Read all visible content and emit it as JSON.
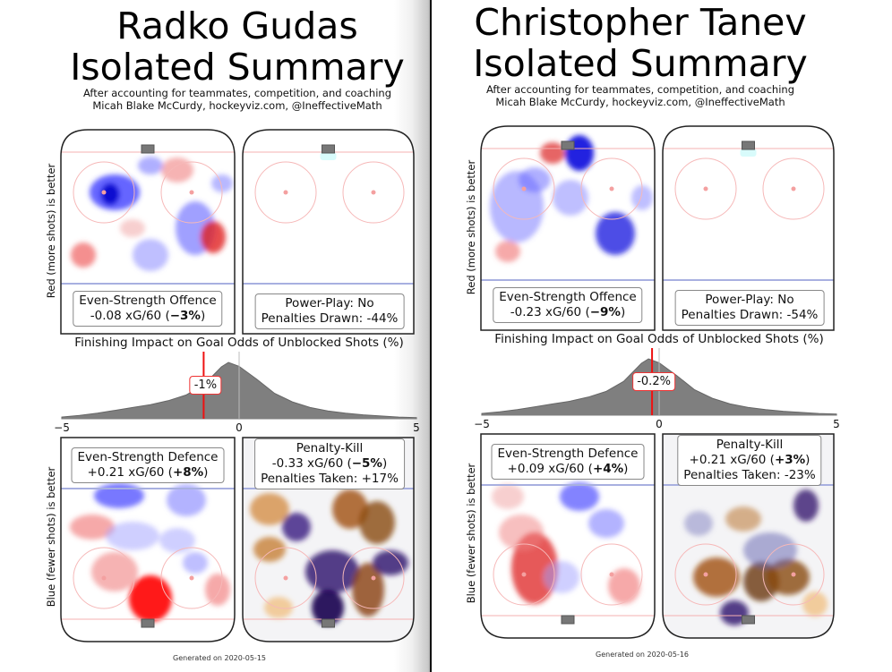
{
  "shared": {
    "subtitle_1": "After accounting for teammates, competition, and coaching",
    "subtitle_2": "Micah Blake McCurdy, hockeyviz.com, @IneffectiveMath",
    "ylabel_top": "Red (more shots) is better",
    "ylabel_bottom": "Blue (fewer shots) is better",
    "colors": {
      "offence_good": "#ff0000",
      "offence_bad": "#3030ff",
      "pk_good": "#7a3a00",
      "pk_bad": "#2a0a5a",
      "marker": "#ee1111"
    }
  },
  "players": [
    {
      "name": "Radko Gudas",
      "title_2": "Isolated Summary",
      "es_offence": {
        "label": "Even-Strength Offence",
        "value": "-0.08 xG/60 (",
        "pct": "−3%",
        "close": ")"
      },
      "power_play": {
        "label": "Power-Play: No",
        "penalties": "Penalties Drawn: -44%"
      },
      "es_defence": {
        "label": "Even-Strength Defence",
        "value": "+0.21 xG/60 (",
        "pct": "+8%",
        "close": ")"
      },
      "penalty_kill": {
        "label": "Penalty-Kill",
        "value": "-0.33 xG/60 (",
        "pct": "−5%",
        "close": ")",
        "penalties": "Penalties Taken: +17%"
      },
      "finishing": {
        "label": "-1%",
        "value": -1
      },
      "generated": "Generated on 2020-05-15"
    },
    {
      "name": "Christopher Tanev",
      "title_2": "Isolated Summary",
      "es_offence": {
        "label": "Even-Strength Offence",
        "value": "-0.23 xG/60 (",
        "pct": "−9%",
        "close": ")"
      },
      "power_play": {
        "label": "Power-Play: No",
        "penalties": "Penalties Drawn: -54%"
      },
      "es_defence": {
        "label": "Even-Strength Defence",
        "value": "+0.09 xG/60 (",
        "pct": "+4%",
        "close": ")"
      },
      "penalty_kill": {
        "label": "Penalty-Kill",
        "value": "+0.21 xG/60 (",
        "pct": "+3%",
        "close": ")",
        "penalties": "Penalties Taken: -23%"
      },
      "finishing": {
        "label": "-0.2%",
        "value": -0.2
      },
      "generated": "Generated on 2020-05-16"
    }
  ],
  "chart_data": {
    "type": "area",
    "title": "Finishing Impact on Goal Odds of Unblocked Shots (%)",
    "xlim": [
      -5,
      5
    ],
    "xticks": [
      "−5",
      "0",
      "5"
    ],
    "x": [
      -5,
      -4.5,
      -4,
      -3.5,
      -3,
      -2.5,
      -2,
      -1.5,
      -1,
      -0.5,
      -0.3,
      0,
      0.5,
      1,
      1.5,
      2,
      2.5,
      3,
      3.5,
      4,
      4.5,
      5
    ],
    "density": [
      0.03,
      0.06,
      0.1,
      0.15,
      0.2,
      0.25,
      0.32,
      0.42,
      0.6,
      0.92,
      1.0,
      0.93,
      0.7,
      0.45,
      0.3,
      0.2,
      0.14,
      0.1,
      0.07,
      0.05,
      0.03,
      0.02
    ]
  }
}
